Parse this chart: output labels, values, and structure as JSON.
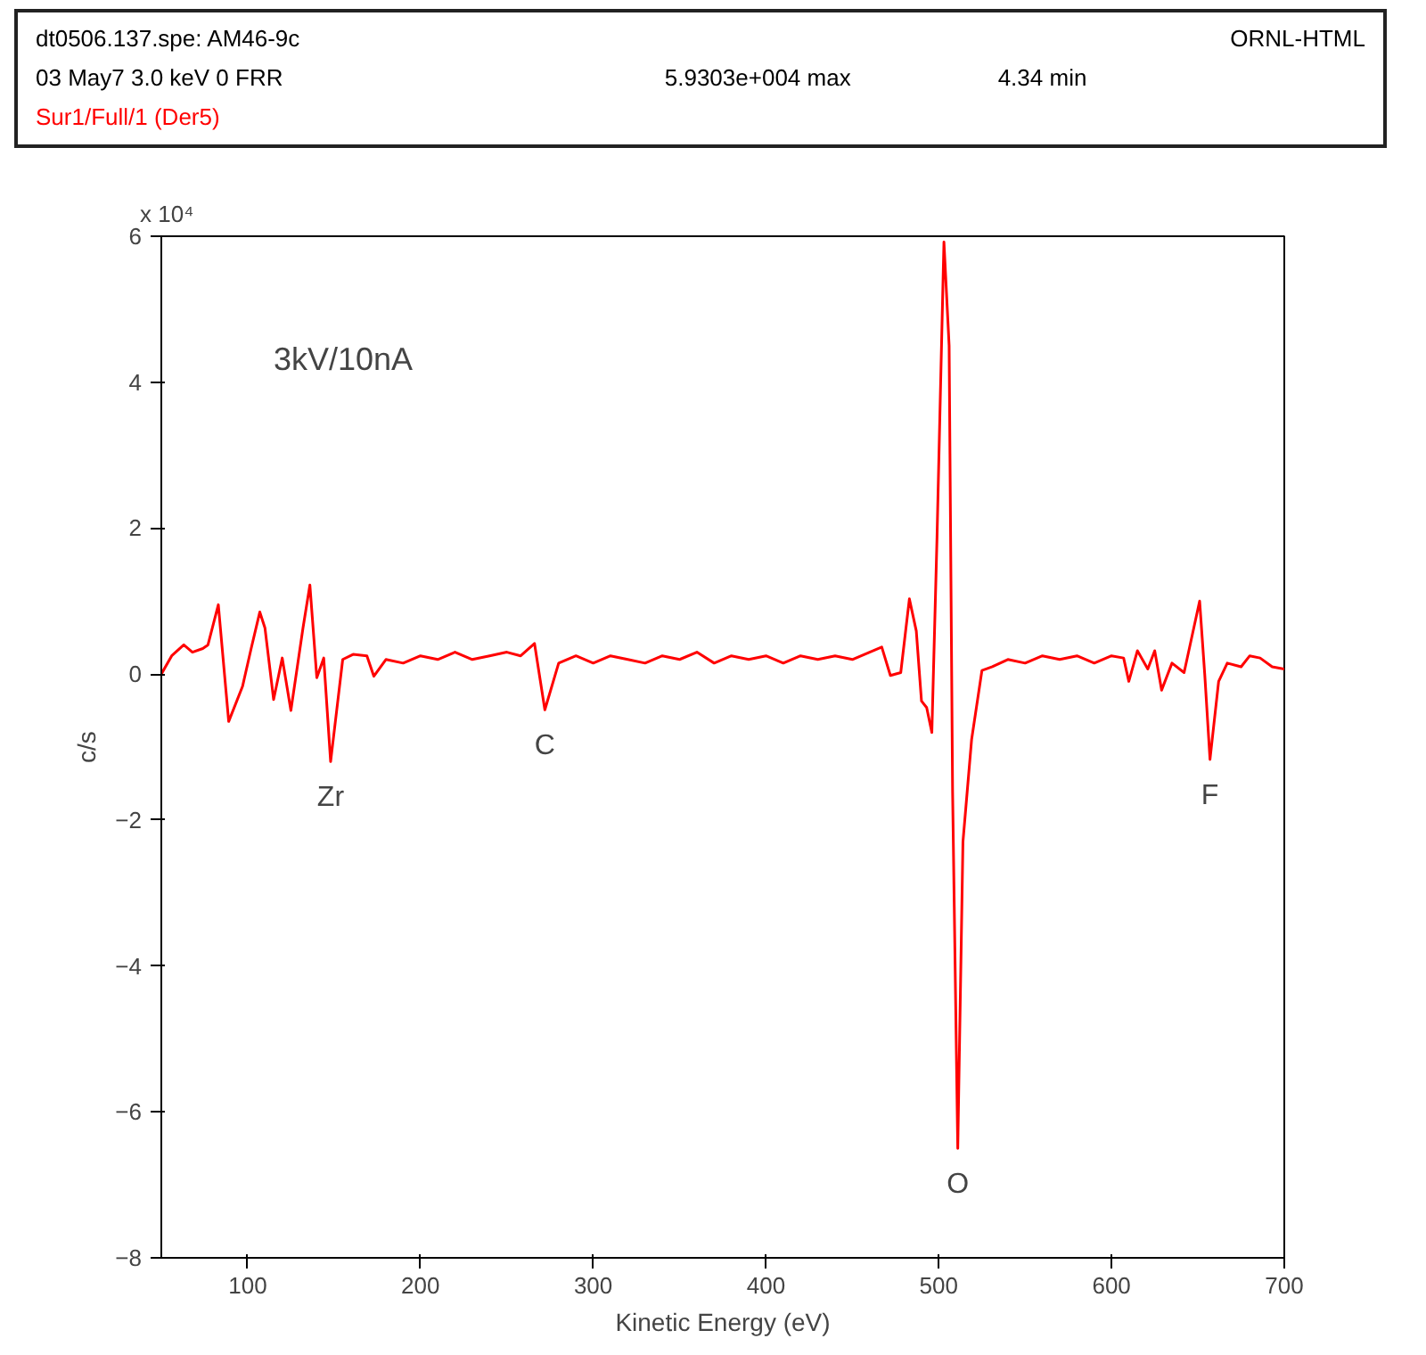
{
  "chart_data": {
    "type": "line",
    "xlabel": "Kinetic Energy (eV)",
    "ylabel": "c/s",
    "xlim": [
      50,
      700
    ],
    "xticks": [
      100,
      200,
      300,
      400,
      500,
      600,
      700
    ],
    "ylim": [
      -8,
      6
    ],
    "yticks": [
      -8,
      -6,
      -4,
      -2,
      0,
      2,
      4,
      6
    ],
    "grid": false,
    "legend": "top",
    "marker": "none",
    "line_style": "solid",
    "annotations": [
      "dt0506.137.spe: AM46-9c",
      "ORNL-HTML",
      "03 May7  3.0 keV  0  FRR",
      "5.9303e+004 max",
      "4.34 min",
      "3kV/10nA",
      "x 10⁴",
      {
        "text": "Zr",
        "x": 148,
        "y": -1.2
      },
      {
        "text": "C",
        "x": 272,
        "y": -0.49
      },
      {
        "text": "O",
        "x": 511,
        "y": -6.5
      },
      {
        "text": "F",
        "x": 657,
        "y": -1.17
      }
    ],
    "series": [
      {
        "name": "Sur1/Full/1 (Der5)",
        "color": "#ff0000",
        "x": [
          50,
          56,
          63,
          68,
          74,
          77,
          83,
          89,
          97,
          102,
          107,
          110,
          115,
          120,
          125,
          132,
          136,
          140,
          144,
          148,
          155,
          161,
          169,
          173,
          180,
          190,
          200,
          210,
          220,
          230,
          240,
          250,
          258,
          266,
          272,
          280,
          290,
          300,
          310,
          320,
          330,
          340,
          350,
          360,
          370,
          380,
          390,
          400,
          410,
          420,
          430,
          440,
          450,
          460,
          467,
          472,
          478,
          483,
          487,
          490,
          493,
          496,
          499,
          503,
          506,
          508,
          511,
          514,
          519,
          525,
          531,
          540,
          550,
          560,
          570,
          580,
          590,
          600,
          607,
          610,
          615,
          621,
          625,
          629,
          635,
          642,
          651,
          654,
          657,
          662,
          667,
          675,
          680,
          686,
          693,
          700
        ],
        "values": [
          0.0,
          0.25,
          0.4,
          0.3,
          0.35,
          0.4,
          0.95,
          -0.65,
          -0.17,
          0.35,
          0.85,
          0.63,
          -0.35,
          0.22,
          -0.5,
          0.63,
          1.22,
          -0.05,
          0.22,
          -1.2,
          0.2,
          0.27,
          0.25,
          -0.03,
          0.2,
          0.15,
          0.25,
          0.2,
          0.3,
          0.2,
          0.25,
          0.3,
          0.25,
          0.42,
          -0.49,
          0.15,
          0.25,
          0.15,
          0.25,
          0.2,
          0.15,
          0.25,
          0.2,
          0.3,
          0.15,
          0.25,
          0.2,
          0.25,
          0.15,
          0.25,
          0.2,
          0.25,
          0.2,
          0.3,
          0.37,
          -0.02,
          0.02,
          1.03,
          0.59,
          -0.37,
          -0.46,
          -0.8,
          1.88,
          5.92,
          4.5,
          -1.6,
          -6.5,
          -2.3,
          -0.9,
          0.05,
          0.1,
          0.2,
          0.15,
          0.25,
          0.2,
          0.25,
          0.15,
          0.25,
          0.22,
          -0.1,
          0.32,
          0.07,
          0.32,
          -0.22,
          0.15,
          0.02,
          1.0,
          -0.02,
          -1.17,
          -0.1,
          0.15,
          0.1,
          0.25,
          0.22,
          0.1,
          0.07
        ]
      }
    ]
  }
}
